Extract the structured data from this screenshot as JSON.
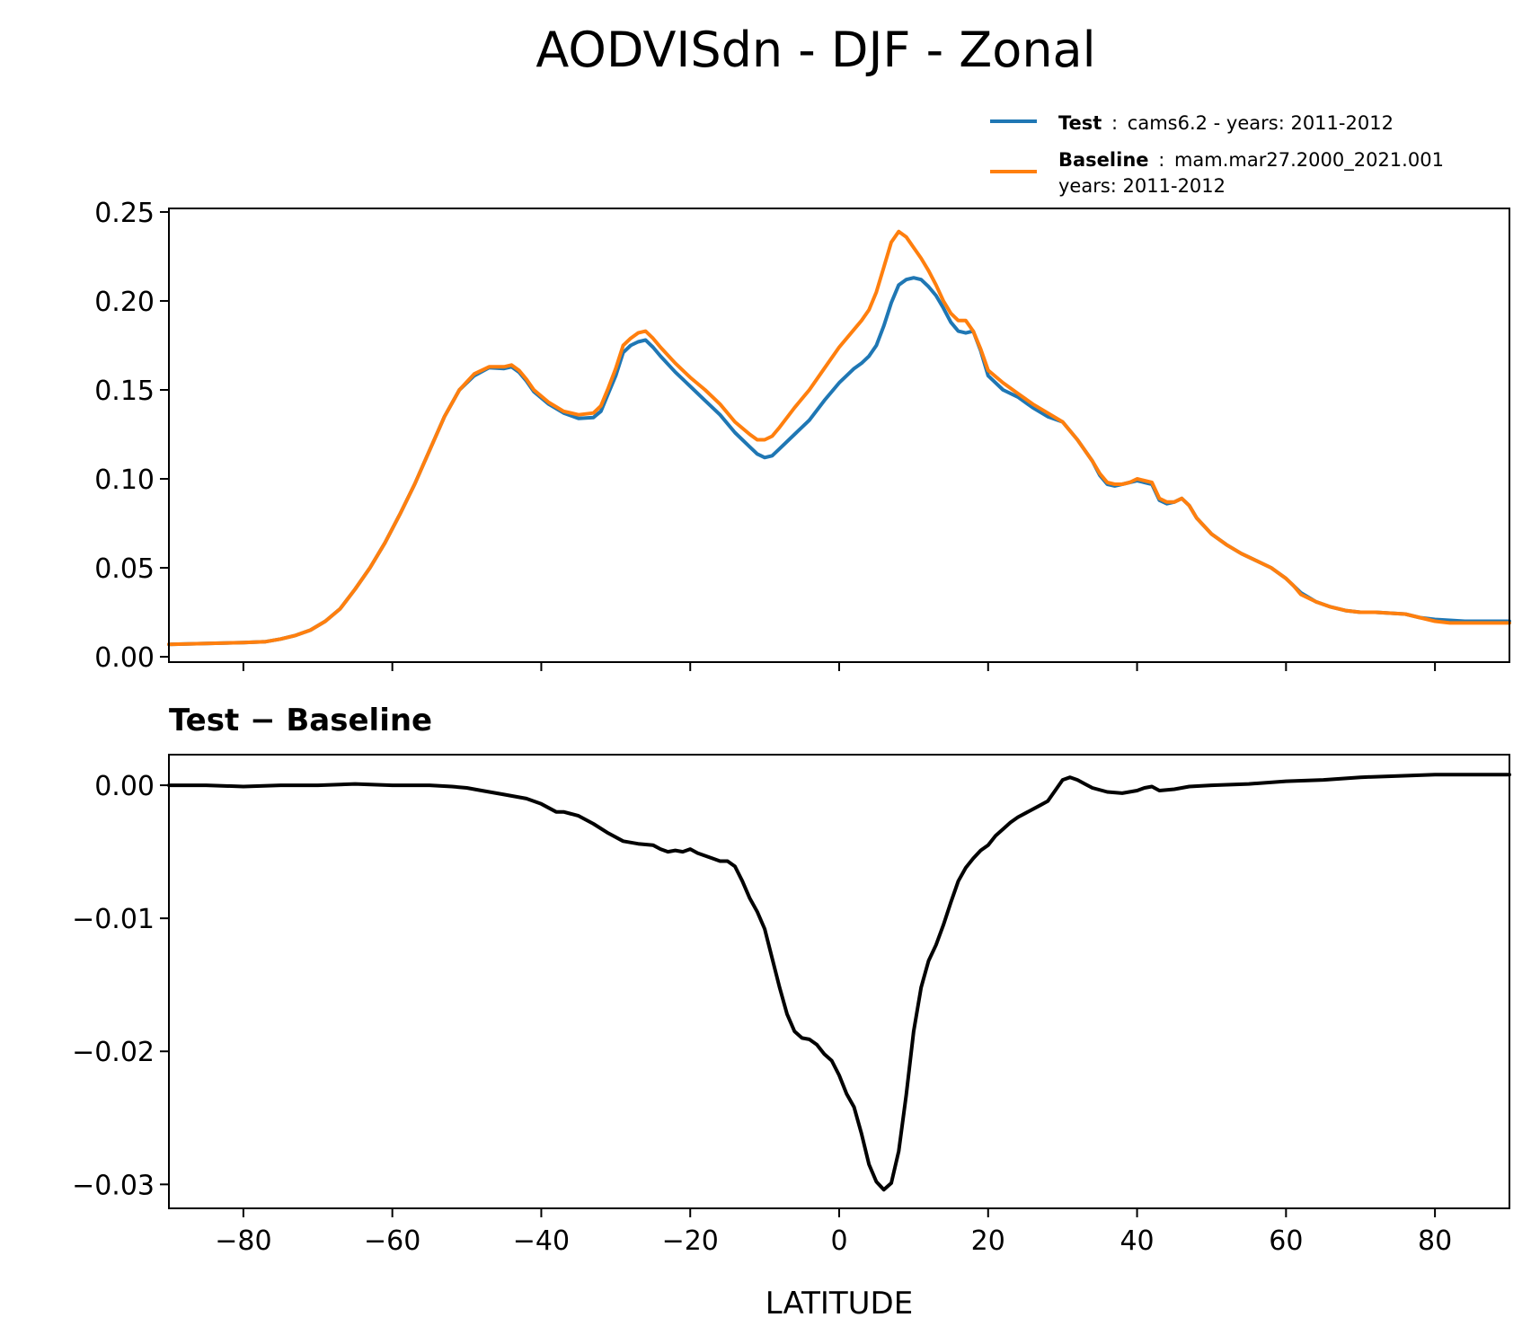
{
  "chart_data": [
    {
      "type": "line",
      "title": "AODVISdn - DJF - Zonal",
      "xlim": [
        -90,
        90
      ],
      "ylim": [
        -0.003,
        0.252
      ],
      "yticks": [
        0.0,
        0.05,
        0.1,
        0.15,
        0.2,
        0.25
      ],
      "ytick_labels": [
        "0.00",
        "0.05",
        "0.10",
        "0.15",
        "0.20",
        "0.25"
      ],
      "xticks": [
        -80,
        -60,
        -40,
        -20,
        0,
        20,
        40,
        60,
        80
      ],
      "legend": {
        "placement": "top-right",
        "entries": [
          {
            "bold": "Test",
            "sep": ":",
            "text": "cams6.2 - years: 2011-2012",
            "text2": "",
            "color": "#1f77b4"
          },
          {
            "bold": "Baseline",
            "sep": ":",
            "text": "mam.mar27.2000_2021.001",
            "text2": "years: 2011-2012",
            "color": "#ff7f0e"
          }
        ]
      },
      "series": [
        {
          "name": "Test",
          "color": "#1f77b4",
          "x": [
            -90,
            -85,
            -80,
            -77,
            -75,
            -73,
            -71,
            -69,
            -67,
            -65,
            -63,
            -61,
            -59,
            -57,
            -55,
            -53,
            -51,
            -49,
            -47,
            -45,
            -44,
            -43,
            -42,
            -41,
            -39,
            -37,
            -35,
            -33,
            -32,
            -31,
            -30,
            -29,
            -28,
            -27,
            -26,
            -25,
            -24,
            -22,
            -20,
            -18,
            -16,
            -14,
            -12,
            -11,
            -10,
            -9,
            -8,
            -6,
            -4,
            -2,
            0,
            2,
            3,
            4,
            5,
            6,
            7,
            8,
            9,
            10,
            11,
            12,
            13,
            14,
            15,
            16,
            17,
            18,
            19,
            20,
            22,
            24,
            26,
            28,
            30,
            32,
            34,
            35,
            36,
            37,
            38,
            39,
            40,
            41,
            42,
            43,
            44,
            45,
            46,
            47,
            48,
            50,
            52,
            54,
            56,
            58,
            60,
            61,
            62,
            64,
            66,
            68,
            70,
            72,
            74,
            76,
            78,
            80,
            82,
            84,
            86,
            88,
            90
          ],
          "y": [
            0.007,
            0.0075,
            0.008,
            0.0085,
            0.01,
            0.012,
            0.015,
            0.02,
            0.027,
            0.038,
            0.05,
            0.064,
            0.08,
            0.097,
            0.116,
            0.135,
            0.15,
            0.158,
            0.1625,
            0.162,
            0.163,
            0.16,
            0.155,
            0.149,
            0.142,
            0.137,
            0.134,
            0.1345,
            0.138,
            0.148,
            0.158,
            0.171,
            0.175,
            0.177,
            0.178,
            0.174,
            0.169,
            0.16,
            0.152,
            0.144,
            0.136,
            0.126,
            0.118,
            0.114,
            0.112,
            0.113,
            0.117,
            0.125,
            0.133,
            0.144,
            0.154,
            0.162,
            0.165,
            0.169,
            0.175,
            0.186,
            0.199,
            0.209,
            0.212,
            0.213,
            0.212,
            0.208,
            0.203,
            0.196,
            0.188,
            0.183,
            0.182,
            0.183,
            0.172,
            0.158,
            0.15,
            0.146,
            0.14,
            0.135,
            0.132,
            0.122,
            0.11,
            0.102,
            0.097,
            0.096,
            0.097,
            0.098,
            0.099,
            0.098,
            0.097,
            0.088,
            0.086,
            0.087,
            0.089,
            0.085,
            0.078,
            0.069,
            0.063,
            0.058,
            0.054,
            0.05,
            0.044,
            0.04,
            0.036,
            0.031,
            0.028,
            0.026,
            0.025,
            0.025,
            0.0245,
            0.024,
            0.022,
            0.021,
            0.0205,
            0.02,
            0.02,
            0.02,
            0.02
          ]
        },
        {
          "name": "Baseline",
          "color": "#ff7f0e",
          "x": [
            -90,
            -85,
            -80,
            -77,
            -75,
            -73,
            -71,
            -69,
            -67,
            -65,
            -63,
            -61,
            -59,
            -57,
            -55,
            -53,
            -51,
            -49,
            -47,
            -45,
            -44,
            -43,
            -42,
            -41,
            -39,
            -37,
            -35,
            -33,
            -32,
            -31,
            -30,
            -29,
            -28,
            -27,
            -26,
            -25,
            -24,
            -22,
            -20,
            -18,
            -16,
            -14,
            -12,
            -11,
            -10,
            -9,
            -8,
            -6,
            -4,
            -2,
            0,
            2,
            3,
            4,
            5,
            6,
            7,
            8,
            9,
            10,
            11,
            12,
            13,
            14,
            15,
            16,
            17,
            18,
            19,
            20,
            22,
            24,
            26,
            28,
            30,
            32,
            34,
            35,
            36,
            37,
            38,
            39,
            40,
            41,
            42,
            43,
            44,
            45,
            46,
            47,
            48,
            50,
            52,
            54,
            56,
            58,
            60,
            61,
            62,
            64,
            66,
            68,
            70,
            72,
            74,
            76,
            78,
            80,
            82,
            84,
            86,
            88,
            90
          ],
          "y": [
            0.007,
            0.0075,
            0.008,
            0.0085,
            0.01,
            0.012,
            0.015,
            0.02,
            0.027,
            0.038,
            0.05,
            0.064,
            0.08,
            0.097,
            0.116,
            0.135,
            0.15,
            0.159,
            0.163,
            0.163,
            0.164,
            0.161,
            0.156,
            0.15,
            0.143,
            0.138,
            0.136,
            0.137,
            0.141,
            0.151,
            0.162,
            0.175,
            0.179,
            0.182,
            0.183,
            0.179,
            0.174,
            0.165,
            0.157,
            0.15,
            0.142,
            0.132,
            0.125,
            0.122,
            0.122,
            0.124,
            0.129,
            0.14,
            0.15,
            0.162,
            0.174,
            0.184,
            0.189,
            0.195,
            0.205,
            0.219,
            0.233,
            0.239,
            0.236,
            0.23,
            0.224,
            0.217,
            0.209,
            0.2,
            0.193,
            0.189,
            0.189,
            0.183,
            0.173,
            0.161,
            0.154,
            0.148,
            0.142,
            0.137,
            0.132,
            0.122,
            0.11,
            0.103,
            0.098,
            0.097,
            0.097,
            0.098,
            0.1,
            0.099,
            0.098,
            0.089,
            0.087,
            0.087,
            0.089,
            0.085,
            0.078,
            0.069,
            0.063,
            0.058,
            0.054,
            0.05,
            0.044,
            0.04,
            0.035,
            0.031,
            0.028,
            0.026,
            0.025,
            0.025,
            0.0245,
            0.024,
            0.022,
            0.02,
            0.019,
            0.019,
            0.019,
            0.019,
            0.019
          ]
        }
      ]
    },
    {
      "type": "line",
      "title": "Test − Baseline",
      "xlabel": "LATITUDE",
      "xlim": [
        -90,
        90
      ],
      "ylim": [
        -0.0318,
        0.0023
      ],
      "yticks": [
        0.0,
        -0.01,
        -0.02,
        -0.03
      ],
      "ytick_labels": [
        "0.00",
        "−0.01",
        "−0.02",
        "−0.03"
      ],
      "xticks": [
        -80,
        -60,
        -40,
        -20,
        0,
        20,
        40,
        60,
        80
      ],
      "xtick_labels": [
        "−80",
        "−60",
        "−40",
        "−20",
        "0",
        "20",
        "40",
        "60",
        "80"
      ],
      "series": [
        {
          "name": "Test − Baseline",
          "color": "#000000",
          "x": [
            -90,
            -85,
            -80,
            -75,
            -70,
            -65,
            -60,
            -55,
            -52,
            -50,
            -48,
            -45,
            -42,
            -40,
            -38,
            -37,
            -35,
            -33,
            -31,
            -29,
            -27,
            -25,
            -24,
            -23,
            -22,
            -21,
            -20,
            -19,
            -17,
            -16,
            -15,
            -14,
            -13,
            -12,
            -11,
            -10,
            -9,
            -8,
            -7,
            -6,
            -5,
            -4,
            -3,
            -2,
            -1,
            0,
            1,
            2,
            3,
            4,
            5,
            6,
            7,
            8,
            9,
            10,
            11,
            12,
            13,
            14,
            15,
            16,
            17,
            18,
            19,
            20,
            21,
            22,
            23,
            24,
            25,
            26,
            27,
            28,
            29,
            30,
            31,
            32,
            33,
            34,
            36,
            38,
            40,
            41,
            42,
            43,
            45,
            47,
            50,
            55,
            60,
            65,
            70,
            75,
            80,
            85,
            90
          ],
          "y": [
            0.0,
            0.0,
            -0.0001,
            0.0,
            0.0,
            0.0001,
            0.0,
            0.0,
            -0.0001,
            -0.0002,
            -0.0004,
            -0.0007,
            -0.001,
            -0.0014,
            -0.002,
            -0.002,
            -0.0023,
            -0.0029,
            -0.0036,
            -0.0042,
            -0.0044,
            -0.0045,
            -0.0048,
            -0.005,
            -0.0049,
            -0.005,
            -0.0048,
            -0.0051,
            -0.0055,
            -0.0057,
            -0.0057,
            -0.0061,
            -0.0072,
            -0.0085,
            -0.0095,
            -0.0108,
            -0.013,
            -0.0152,
            -0.0172,
            -0.0185,
            -0.019,
            -0.0191,
            -0.0195,
            -0.0202,
            -0.0207,
            -0.0218,
            -0.0232,
            -0.0242,
            -0.0262,
            -0.0285,
            -0.0298,
            -0.0304,
            -0.0299,
            -0.0275,
            -0.0233,
            -0.0185,
            -0.0152,
            -0.0132,
            -0.012,
            -0.0105,
            -0.0088,
            -0.0072,
            -0.0062,
            -0.0055,
            -0.0049,
            -0.0045,
            -0.0038,
            -0.0033,
            -0.0028,
            -0.0024,
            -0.0021,
            -0.0018,
            -0.0015,
            -0.0012,
            -0.0004,
            0.0004,
            0.0006,
            0.0004,
            0.0001,
            -0.0002,
            -0.0005,
            -0.0006,
            -0.0004,
            -0.0002,
            -0.0001,
            -0.0004,
            -0.0003,
            -0.0001,
            0.0,
            0.0001,
            0.0003,
            0.0004,
            0.0006,
            0.0007,
            0.0008,
            0.0008,
            0.0008
          ]
        }
      ]
    }
  ]
}
